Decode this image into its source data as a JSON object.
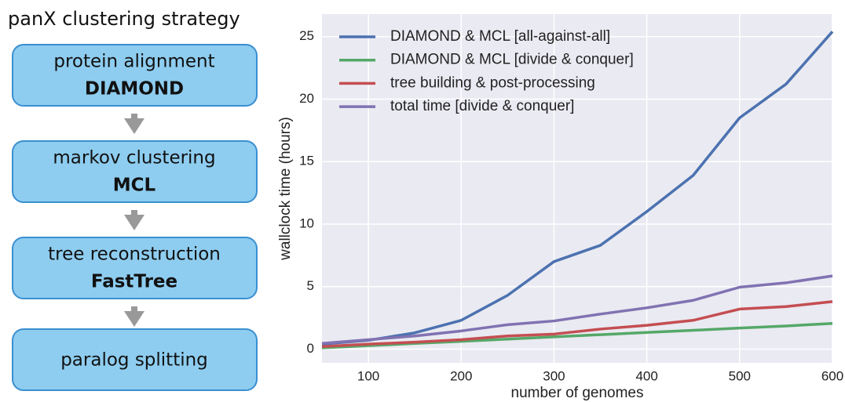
{
  "diagram": {
    "title": "panX clustering strategy",
    "steps": [
      {
        "label": "protein alignment",
        "tool": "DIAMOND"
      },
      {
        "label": "markov clustering",
        "tool": "MCL"
      },
      {
        "label": "tree reconstruction",
        "tool": "FastTree"
      },
      {
        "label": "paralog splitting"
      }
    ]
  },
  "chart_data": {
    "type": "line",
    "x_label": "number of genomes",
    "y_label": "wallclock time (hours)",
    "x": [
      50,
      100,
      150,
      200,
      250,
      300,
      350,
      400,
      450,
      500,
      550,
      600
    ],
    "series": [
      {
        "name": "DIAMOND & MCL [all-against-all]",
        "color": "#4c72b0",
        "values": [
          0.4,
          0.7,
          1.3,
          2.3,
          4.3,
          7.0,
          8.3,
          11.0,
          13.9,
          18.5,
          21.2,
          25.4
        ]
      },
      {
        "name": "DIAMOND & MCL [divide & conquer]",
        "color": "#55a868",
        "values": [
          0.1,
          0.27,
          0.45,
          0.62,
          0.8,
          0.98,
          1.15,
          1.33,
          1.5,
          1.68,
          1.85,
          2.05
        ]
      },
      {
        "name": "tree building & post-processing",
        "color": "#c44e52",
        "values": [
          0.2,
          0.4,
          0.55,
          0.75,
          1.05,
          1.2,
          1.6,
          1.9,
          2.3,
          3.2,
          3.4,
          3.8
        ]
      },
      {
        "name": "total time [divide & conquer]",
        "color": "#8172b2",
        "values": [
          0.45,
          0.75,
          1.05,
          1.45,
          1.95,
          2.25,
          2.8,
          3.3,
          3.9,
          4.95,
          5.3,
          5.85
        ]
      }
    ],
    "xlim": [
      50,
      600
    ],
    "ylim": [
      -1.1,
      26.8
    ],
    "xticks": [
      100,
      200,
      300,
      400,
      500,
      600
    ],
    "yticks": [
      0,
      5,
      10,
      15,
      20,
      25
    ],
    "grid": true,
    "legend": "upper-left",
    "background": "#eaeaf2"
  }
}
